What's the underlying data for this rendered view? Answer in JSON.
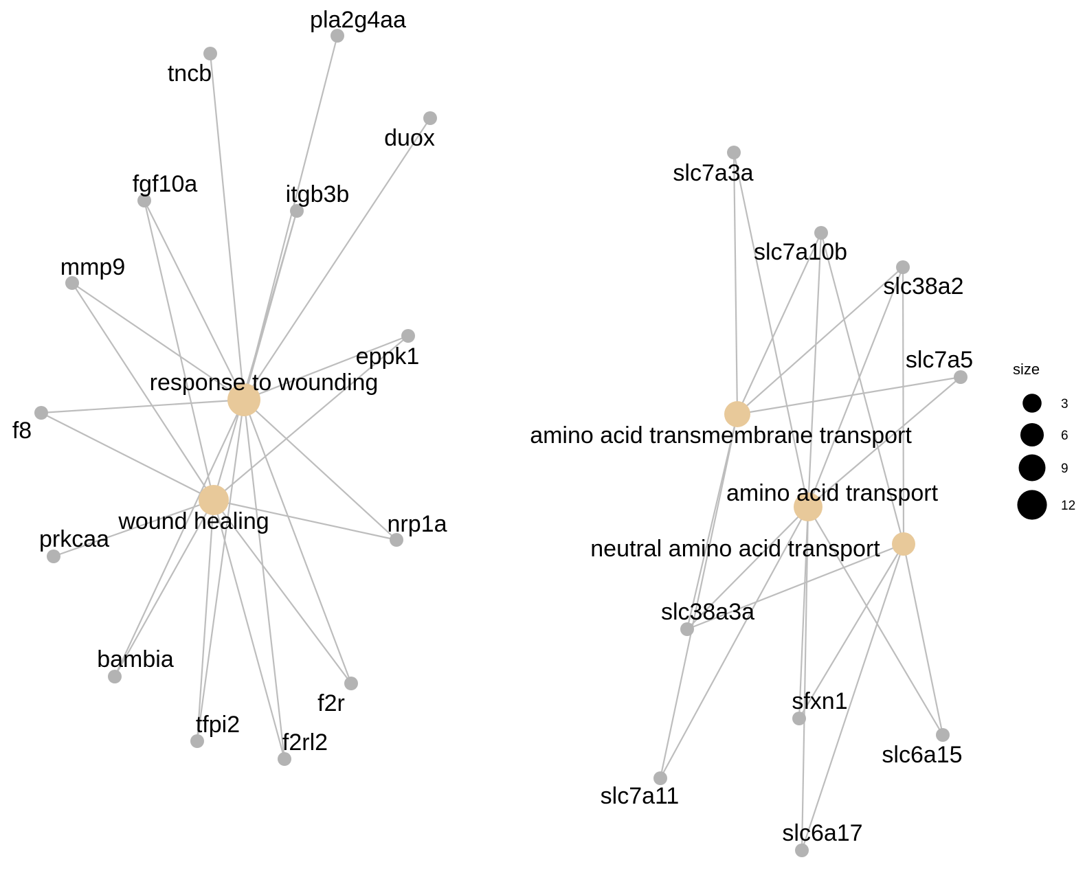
{
  "colors": {
    "term": "#e8c99a",
    "gene": "#b3b3b3",
    "edge": "#bdbdbd"
  },
  "term_nodes": [
    {
      "id": "rtw",
      "label": "response to wounding"
    },
    {
      "id": "wh",
      "label": "wound healing"
    },
    {
      "id": "aatt",
      "label": "amino acid transmembrane transport"
    },
    {
      "id": "aat",
      "label": "amino acid transport"
    },
    {
      "id": "naat",
      "label": "neutral amino acid transport"
    }
  ],
  "gene_nodes": [
    {
      "id": "pla2g4aa",
      "label": "pla2g4aa"
    },
    {
      "id": "tncb",
      "label": "tncb"
    },
    {
      "id": "duox",
      "label": "duox"
    },
    {
      "id": "fgf10a",
      "label": "fgf10a"
    },
    {
      "id": "itgb3b",
      "label": "itgb3b"
    },
    {
      "id": "mmp9",
      "label": "mmp9"
    },
    {
      "id": "eppk1",
      "label": "eppk1"
    },
    {
      "id": "f8",
      "label": "f8"
    },
    {
      "id": "prkcaa",
      "label": "prkcaa"
    },
    {
      "id": "nrp1a",
      "label": "nrp1a"
    },
    {
      "id": "bambia",
      "label": "bambia"
    },
    {
      "id": "f2r",
      "label": "f2r"
    },
    {
      "id": "tfpi2",
      "label": "tfpi2"
    },
    {
      "id": "f2rl2",
      "label": "f2rl2"
    },
    {
      "id": "slc7a3a",
      "label": "slc7a3a"
    },
    {
      "id": "slc7a10b",
      "label": "slc7a10b"
    },
    {
      "id": "slc38a2",
      "label": "slc38a2"
    },
    {
      "id": "slc7a5",
      "label": "slc7a5"
    },
    {
      "id": "slc38a3a",
      "label": "slc38a3a"
    },
    {
      "id": "sfxn1",
      "label": "sfxn1"
    },
    {
      "id": "slc6a15",
      "label": "slc6a15"
    },
    {
      "id": "slc7a11",
      "label": "slc7a11"
    },
    {
      "id": "slc6a17",
      "label": "slc6a17"
    }
  ],
  "edges": [
    [
      "rtw",
      "tncb"
    ],
    [
      "rtw",
      "pla2g4aa"
    ],
    [
      "rtw",
      "duox"
    ],
    [
      "rtw",
      "fgf10a"
    ],
    [
      "rtw",
      "itgb3b"
    ],
    [
      "rtw",
      "mmp9"
    ],
    [
      "rtw",
      "eppk1"
    ],
    [
      "rtw",
      "f8"
    ],
    [
      "rtw",
      "bambia"
    ],
    [
      "rtw",
      "f2r"
    ],
    [
      "rtw",
      "tfpi2"
    ],
    [
      "rtw",
      "f2rl2"
    ],
    [
      "rtw",
      "nrp1a"
    ],
    [
      "wh",
      "fgf10a"
    ],
    [
      "wh",
      "itgb3b"
    ],
    [
      "wh",
      "mmp9"
    ],
    [
      "wh",
      "f8"
    ],
    [
      "wh",
      "prkcaa"
    ],
    [
      "wh",
      "nrp1a"
    ],
    [
      "wh",
      "bambia"
    ],
    [
      "wh",
      "f2r"
    ],
    [
      "wh",
      "tfpi2"
    ],
    [
      "wh",
      "f2rl2"
    ],
    [
      "wh",
      "eppk1"
    ],
    [
      "aatt",
      "slc7a3a"
    ],
    [
      "aatt",
      "slc7a10b"
    ],
    [
      "aatt",
      "slc38a2"
    ],
    [
      "aatt",
      "slc7a5"
    ],
    [
      "aatt",
      "slc38a3a"
    ],
    [
      "aatt",
      "slc7a11"
    ],
    [
      "aat",
      "slc7a3a"
    ],
    [
      "aat",
      "slc7a10b"
    ],
    [
      "aat",
      "slc38a2"
    ],
    [
      "aat",
      "slc7a5"
    ],
    [
      "aat",
      "slc38a3a"
    ],
    [
      "aat",
      "sfxn1"
    ],
    [
      "aat",
      "slc6a15"
    ],
    [
      "aat",
      "slc7a11"
    ],
    [
      "aat",
      "slc6a17"
    ],
    [
      "naat",
      "slc7a10b"
    ],
    [
      "naat",
      "slc38a2"
    ],
    [
      "naat",
      "slc38a3a"
    ],
    [
      "naat",
      "sfxn1"
    ],
    [
      "naat",
      "slc6a15"
    ],
    [
      "naat",
      "slc6a17"
    ]
  ],
  "legend": {
    "title": "size",
    "items": [
      {
        "label": "3",
        "value": 3
      },
      {
        "label": "6",
        "value": 6
      },
      {
        "label": "9",
        "value": 9
      },
      {
        "label": "12",
        "value": 12
      }
    ]
  }
}
